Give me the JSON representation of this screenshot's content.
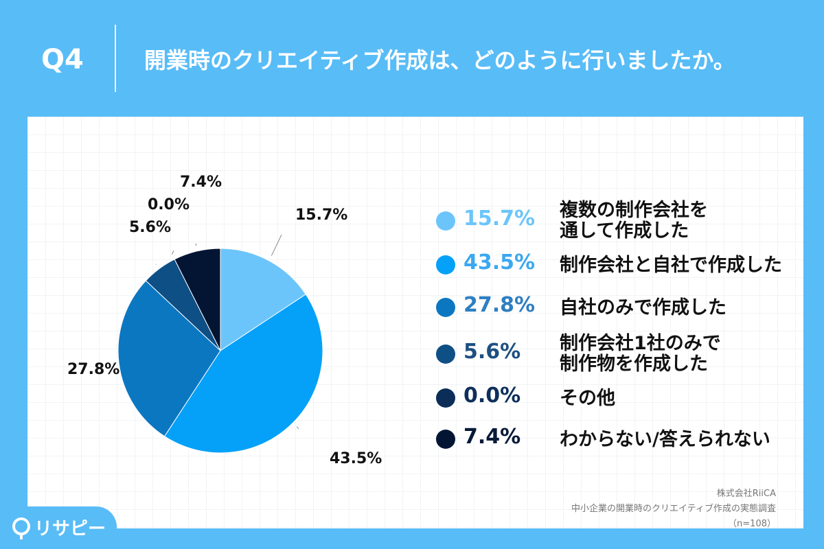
{
  "header": {
    "question_label": "Q4",
    "title": "開業時のクリエイティブ作成は、どのように行いましたか。"
  },
  "chart_data": {
    "type": "pie",
    "categories": [
      "複数の制作会社を\n通して作成した",
      "制作会社と自社で作成した",
      "自社のみで作成した",
      "制作会社1社のみで\n制作物を作成した",
      "その他",
      "わからない/答えられない"
    ],
    "values": [
      15.7,
      43.5,
      27.8,
      5.6,
      0.0,
      7.4
    ],
    "value_labels": [
      "15.7%",
      "43.5%",
      "27.8%",
      "5.6%",
      "0.0%",
      "7.4%"
    ],
    "colors": [
      "#6CC5FA",
      "#05A1F8",
      "#0C77C1",
      "#0E4F85",
      "#0B2D58",
      "#041534"
    ],
    "legend_position": "right"
  },
  "source": {
    "company": "株式会社RiiCA",
    "survey": "中小企業の開業時のクリエイティブ作成の実態調査",
    "sample": "（n=108）"
  },
  "logo": {
    "text": "リサピー"
  }
}
